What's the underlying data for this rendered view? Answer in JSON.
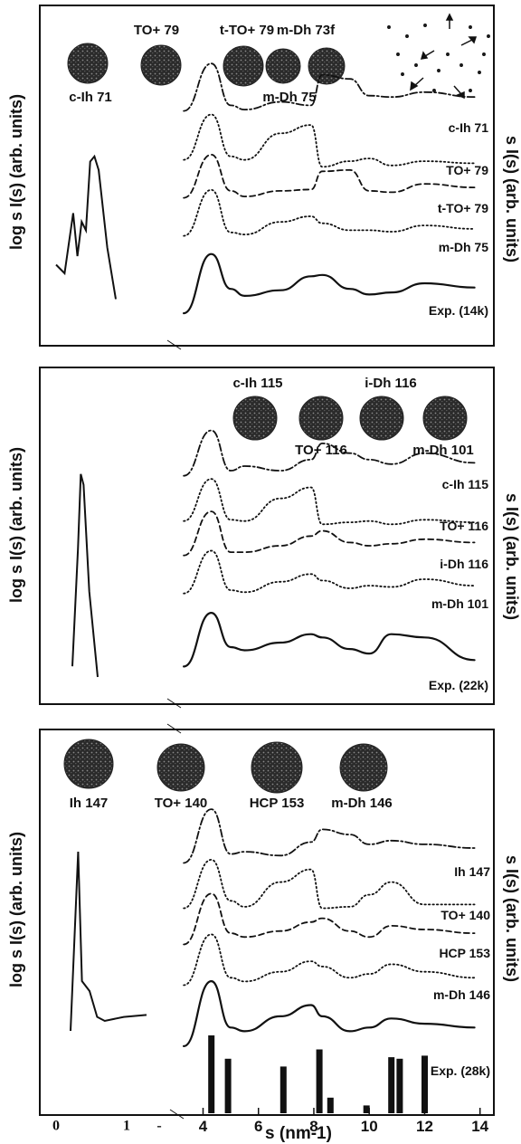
{
  "chart_data": [
    {
      "type": "line",
      "y_left_label": "log s I(s)  (arb. units)",
      "y_right_label": "s I(s)  (arb. units)",
      "clusters": [
        {
          "label": "TO+ 79"
        },
        {
          "label": "t-TO+ 79"
        },
        {
          "label": "m-Dh 73f"
        },
        {
          "label": "c-Ih 71"
        },
        {
          "label": "m-Dh 75"
        }
      ],
      "left_series": {
        "x": [
          0.1,
          0.2,
          0.3,
          0.35,
          0.4,
          0.45,
          0.5,
          0.55,
          0.6,
          0.7,
          0.8
        ],
        "y": [
          0.25,
          0.2,
          0.55,
          0.3,
          0.5,
          0.45,
          0.85,
          0.88,
          0.8,
          0.35,
          0.05
        ]
      },
      "series": [
        {
          "name": "c-Ih 71",
          "style": "dashdot",
          "values": [
            0.2,
            0.88,
            0.28,
            0.22,
            0.33,
            0.28,
            0.72,
            0.66,
            0.42,
            0.4,
            0.47,
            0.4
          ]
        },
        {
          "name": "TO+ 79",
          "style": "dotted",
          "values": [
            0.2,
            0.85,
            0.25,
            0.2,
            0.58,
            0.7,
            0.1,
            0.18,
            0.22,
            0.12,
            0.18,
            0.15
          ]
        },
        {
          "name": "t-TO+ 79",
          "style": "dashed",
          "values": [
            0.2,
            0.82,
            0.3,
            0.22,
            0.3,
            0.32,
            0.58,
            0.6,
            0.3,
            0.28,
            0.4,
            0.35
          ]
        },
        {
          "name": "m-Dh 75",
          "style": "dotted",
          "values": [
            0.2,
            0.86,
            0.25,
            0.22,
            0.4,
            0.48,
            0.38,
            0.28,
            0.28,
            0.26,
            0.35,
            0.3
          ]
        },
        {
          "name": "Exp. (14k)",
          "style": "solid",
          "values": [
            0.05,
            0.9,
            0.4,
            0.3,
            0.38,
            0.58,
            0.6,
            0.4,
            0.32,
            0.35,
            0.48,
            0.42
          ]
        }
      ]
    },
    {
      "type": "line",
      "y_left_label": "log s I(s)  (arb. units)",
      "y_right_label": "s I(s)  (arb. units)",
      "clusters": [
        {
          "label": "c-Ih 115"
        },
        {
          "label": "TO+ 116"
        },
        {
          "label": "i-Dh 116"
        },
        {
          "label": "m-Dh 101"
        }
      ],
      "left_series": {
        "x": [
          0.3,
          0.4,
          0.45,
          0.5,
          0.6,
          0.75
        ],
        "y": [
          0.05,
          0.6,
          0.95,
          0.9,
          0.4,
          0.0
        ]
      },
      "series": [
        {
          "name": "c-Ih 115",
          "style": "dashdot",
          "values": [
            0.2,
            0.9,
            0.28,
            0.35,
            0.28,
            0.45,
            0.7,
            0.55,
            0.45,
            0.38,
            0.55,
            0.4
          ]
        },
        {
          "name": "TO+ 116",
          "style": "dotted",
          "values": [
            0.2,
            0.85,
            0.22,
            0.2,
            0.55,
            0.72,
            0.15,
            0.18,
            0.2,
            0.15,
            0.22,
            0.18
          ]
        },
        {
          "name": "i-Dh 116",
          "style": "dashed",
          "values": [
            0.2,
            0.88,
            0.25,
            0.25,
            0.35,
            0.5,
            0.58,
            0.4,
            0.35,
            0.38,
            0.45,
            0.4
          ]
        },
        {
          "name": "m-Dh 101",
          "style": "dotted",
          "values": [
            0.2,
            0.86,
            0.25,
            0.22,
            0.38,
            0.5,
            0.4,
            0.28,
            0.32,
            0.3,
            0.42,
            0.32
          ]
        },
        {
          "name": "Exp. (22k)",
          "style": "solid",
          "values": [
            0.05,
            0.88,
            0.35,
            0.3,
            0.42,
            0.55,
            0.5,
            0.32,
            0.25,
            0.55,
            0.5,
            0.15
          ]
        }
      ]
    },
    {
      "type": "line",
      "y_left_label": "log s I(s)  (arb. units)",
      "y_right_label": "s I(s)  (arb. units)",
      "xlabel": "s (nm-1)",
      "x_ticks_left": [
        "0",
        "1",
        "-"
      ],
      "x_ticks_right": [
        "4",
        "6",
        "8",
        "10",
        "12",
        "14"
      ],
      "xlim": [
        3.2,
        14.5
      ],
      "clusters": [
        {
          "label": "Ih 147"
        },
        {
          "label": "TO+ 140"
        },
        {
          "label": "HCP 153"
        },
        {
          "label": "m-Dh 146"
        }
      ],
      "left_series": {
        "x": [
          0.3,
          0.35,
          0.4,
          0.45,
          0.55,
          0.65,
          0.75,
          1.0,
          1.3
        ],
        "y": [
          0.05,
          0.5,
          0.95,
          0.3,
          0.25,
          0.12,
          0.1,
          0.12,
          0.13
        ]
      },
      "series": [
        {
          "name": "Ih 147",
          "style": "dashdot",
          "values": [
            0.2,
            0.92,
            0.32,
            0.35,
            0.3,
            0.48,
            0.65,
            0.58,
            0.45,
            0.5,
            0.45,
            0.4
          ]
        },
        {
          "name": "TO+ 140",
          "style": "dotted",
          "values": [
            0.2,
            0.85,
            0.3,
            0.22,
            0.55,
            0.72,
            0.2,
            0.22,
            0.38,
            0.55,
            0.25,
            0.25
          ]
        },
        {
          "name": "HCP 153",
          "style": "dashed",
          "values": [
            0.2,
            0.88,
            0.35,
            0.3,
            0.38,
            0.5,
            0.55,
            0.38,
            0.3,
            0.45,
            0.4,
            0.35
          ]
        },
        {
          "name": "m-Dh 146",
          "style": "dotted",
          "values": [
            0.2,
            0.88,
            0.3,
            0.25,
            0.38,
            0.52,
            0.45,
            0.3,
            0.35,
            0.48,
            0.38,
            0.3
          ]
        },
        {
          "name": "Exp. (28k)",
          "style": "solid",
          "values": [
            0.05,
            0.92,
            0.3,
            0.25,
            0.45,
            0.6,
            0.45,
            0.25,
            0.3,
            0.42,
            0.35,
            0.3
          ]
        }
      ],
      "sticks": [
        {
          "x": 4.3,
          "h": 1.0
        },
        {
          "x": 4.9,
          "h": 0.7
        },
        {
          "x": 6.9,
          "h": 0.6
        },
        {
          "x": 8.2,
          "h": 0.82
        },
        {
          "x": 8.6,
          "h": 0.2
        },
        {
          "x": 9.9,
          "h": 0.1
        },
        {
          "x": 10.8,
          "h": 0.72
        },
        {
          "x": 11.1,
          "h": 0.7
        },
        {
          "x": 12.0,
          "h": 0.74
        }
      ]
    }
  ],
  "s_grid": [
    3.3,
    4.3,
    5.0,
    5.5,
    6.8,
    7.9,
    8.3,
    9.3,
    10.0,
    10.8,
    12.0,
    13.8
  ]
}
